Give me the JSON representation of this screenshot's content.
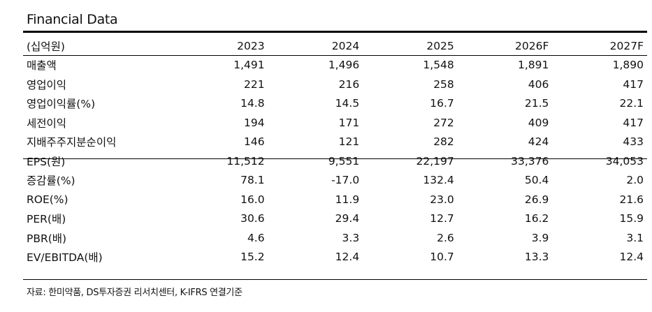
{
  "title": "Financial Data",
  "header": [
    "(십억원)",
    "2023",
    "2024",
    "2025",
    "2026F",
    "2027F"
  ],
  "rows": [
    [
      "매출액",
      "1,491",
      "1,496",
      "1,548",
      "1,891",
      "1,890"
    ],
    [
      "영업이익",
      "221",
      "216",
      "258",
      "406",
      "417"
    ],
    [
      "영업이익률(%)",
      "14.8",
      "14.5",
      "16.7",
      "21.5",
      "22.1"
    ],
    [
      "세전이익",
      "194",
      "171",
      "272",
      "409",
      "417"
    ],
    [
      "지배주주지분순이익",
      "146",
      "121",
      "282",
      "424",
      "433"
    ],
    [
      "EPS(원)",
      "11,512",
      "9,551",
      "22,197",
      "33,376",
      "34,053"
    ],
    [
      "증감률(%)",
      "78.1",
      "-17.0",
      "132.4",
      "50.4",
      "2.0"
    ],
    [
      "ROE(%)",
      "16.0",
      "11.9",
      "23.0",
      "26.9",
      "21.6"
    ],
    [
      "PER(배)",
      "30.6",
      "29.4",
      "12.7",
      "16.2",
      "15.9"
    ],
    [
      "PBR(배)",
      "4.6",
      "3.3",
      "2.6",
      "3.9",
      "3.1"
    ],
    [
      "EV/EBITDA(배)",
      "15.2",
      "12.4",
      "10.7",
      "13.3",
      "12.4"
    ]
  ],
  "source": "자료: 한미약품, DS투자증권 리서치센터, K-IFRS 연결기준"
}
